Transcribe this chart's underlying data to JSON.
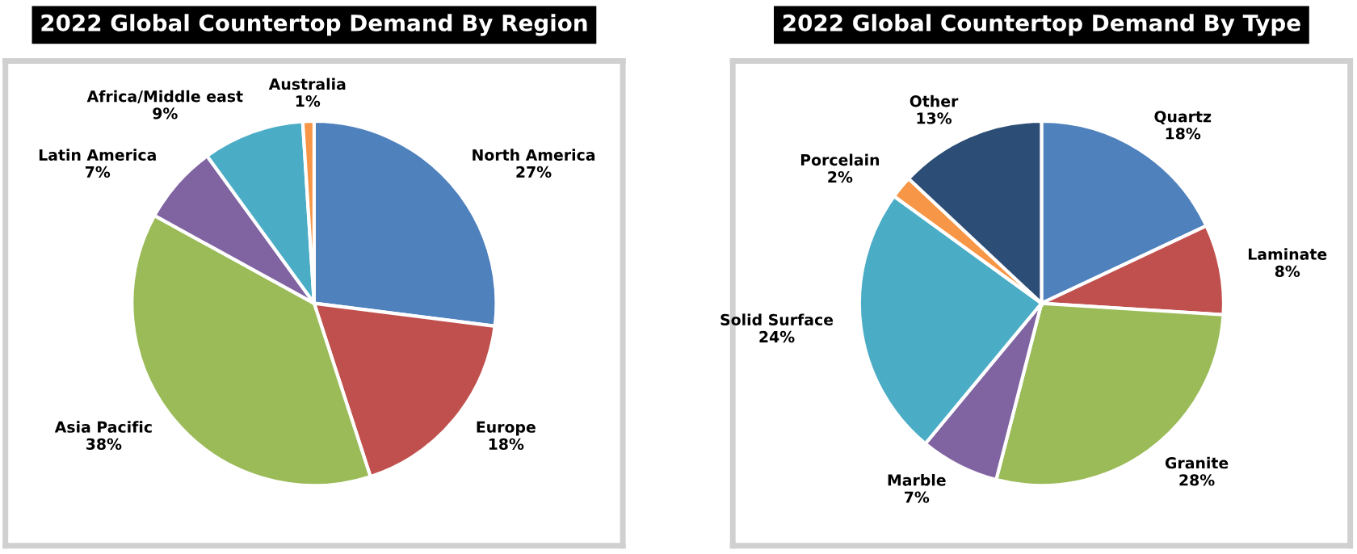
{
  "chart_data": [
    {
      "type": "pie",
      "title": "2022 Global Countertop Demand By Region",
      "categories": [
        "North America",
        "Europe",
        "Asia Pacific",
        "Latin America",
        "Africa/Middle east",
        "Australia"
      ],
      "values": [
        27,
        18,
        38,
        7,
        9,
        1
      ],
      "colors": [
        "#4f81bd",
        "#c0504d",
        "#9bbb59",
        "#8064a2",
        "#4bacc6",
        "#f79646"
      ],
      "value_labels": [
        "27%",
        "18%",
        "38%",
        "7%",
        "9%",
        "1%"
      ]
    },
    {
      "type": "pie",
      "title": "2022 Global Countertop Demand By Type",
      "categories": [
        "Quartz",
        "Laminate",
        "Granite",
        "Marble",
        "Solid Surface",
        "Porcelain",
        "Other"
      ],
      "values": [
        18,
        8,
        28,
        7,
        24,
        2,
        13
      ],
      "colors": [
        "#4f81bd",
        "#c0504d",
        "#9bbb59",
        "#8064a2",
        "#4bacc6",
        "#f79646",
        "#2c4d75"
      ],
      "value_labels": [
        "18%",
        "8%",
        "28%",
        "7%",
        "24%",
        "2%",
        "13%"
      ]
    }
  ]
}
